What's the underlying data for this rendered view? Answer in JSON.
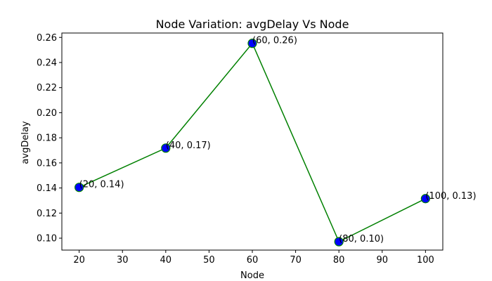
{
  "chart_data": {
    "type": "line",
    "title": "Node Variation: avgDelay Vs Node",
    "xlabel": "Node",
    "ylabel": "avgDelay",
    "xlim": [
      16,
      104
    ],
    "ylim": [
      0.0905,
      0.2635
    ],
    "xticks": [
      20,
      30,
      40,
      50,
      60,
      70,
      80,
      90,
      100
    ],
    "yticks": [
      0.1,
      0.12,
      0.14,
      0.16,
      0.18,
      0.2,
      0.22,
      0.24,
      0.26
    ],
    "ytick_labels": [
      "0.10",
      "0.12",
      "0.14",
      "0.16",
      "0.18",
      "0.20",
      "0.22",
      "0.24",
      "0.26"
    ],
    "grid": false,
    "series": [
      {
        "line_color": "#008000",
        "marker_color": "#0000ff",
        "marker_edge_color": "#008000",
        "x": [
          20,
          40,
          60,
          80,
          100
        ],
        "y": [
          0.1405,
          0.1718,
          0.2553,
          0.0972,
          0.1315
        ],
        "labels": [
          "(20, 0.14)",
          "(40, 0.17)",
          "(60, 0.26)",
          "(80, 0.10)",
          "(100, 0.13)"
        ]
      }
    ]
  }
}
